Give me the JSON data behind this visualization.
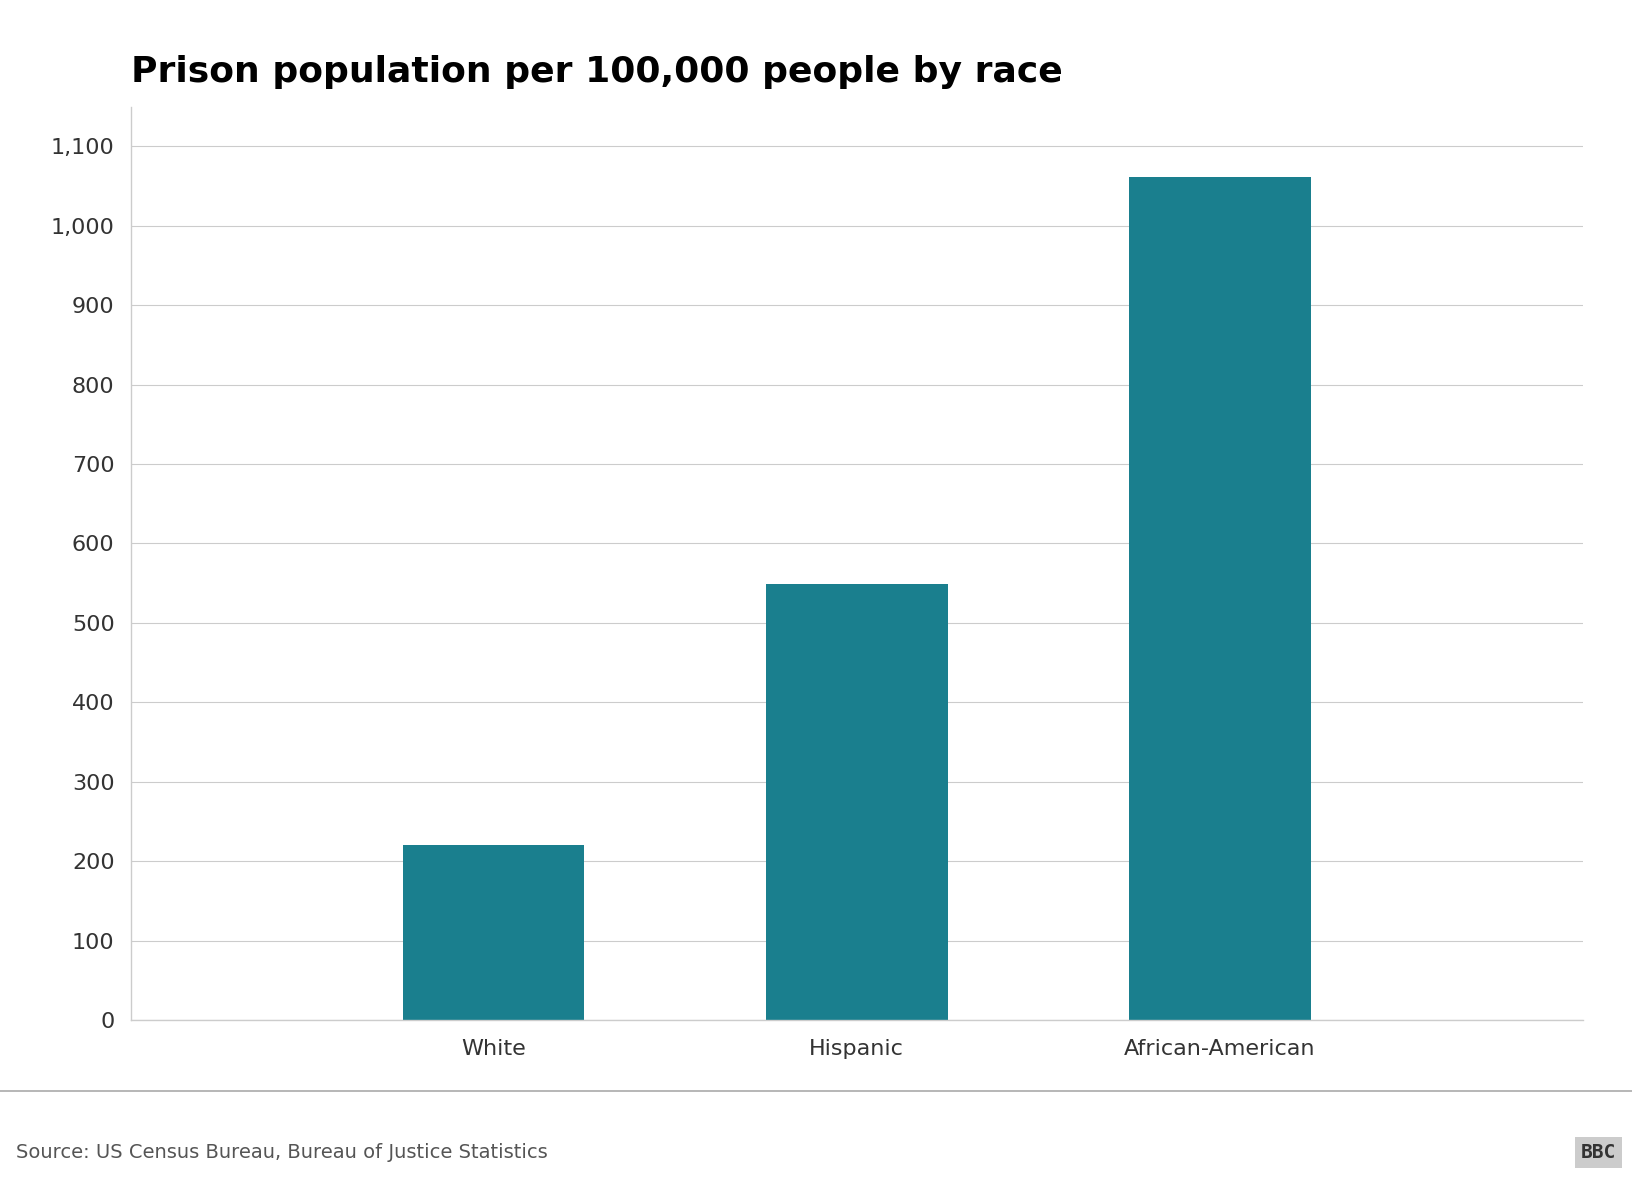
{
  "title": "Prison population per 100,000 people by race",
  "categories": [
    "White",
    "Hispanic",
    "African-American"
  ],
  "values": [
    220,
    549,
    1061
  ],
  "bar_color": "#1a7f8e",
  "ylim": [
    0,
    1150
  ],
  "yticks": [
    0,
    100,
    200,
    300,
    400,
    500,
    600,
    700,
    800,
    900,
    1000,
    1100
  ],
  "source_text": "Source: US Census Bureau, Bureau of Justice Statistics",
  "bbc_text": "BBC",
  "background_color": "#ffffff",
  "title_fontsize": 26,
  "axis_tick_fontsize": 16,
  "source_fontsize": 14,
  "bar_width": 0.5,
  "xlim": [
    0,
    4
  ]
}
